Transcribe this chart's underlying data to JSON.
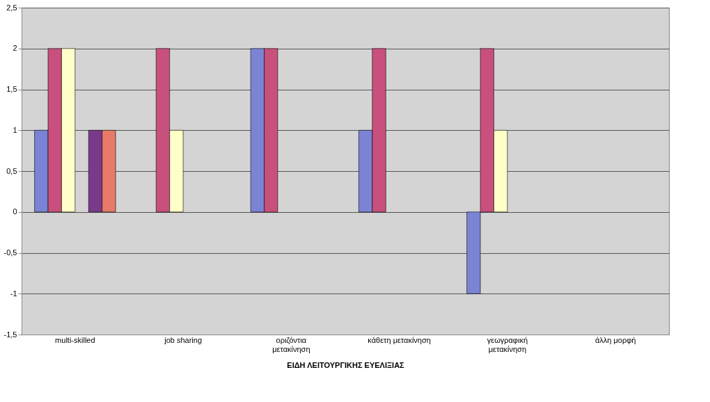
{
  "chart_data": {
    "type": "bar",
    "xlabel": "ΕΙΔΗ ΛΕΙΤΟΥΡΓΙΚΗΣ ΕΥΕΛΙΞΙΑΣ",
    "categories": [
      "multi-skilled",
      "job sharing",
      "οριζόντια\nμετακίνηση",
      "κάθετη μετακίνηση",
      "γεωγραφική\nμετακίνηση",
      "άλλη μορφή"
    ],
    "series": [
      {
        "color": "#7b84d4",
        "values": [
          1,
          0,
          2,
          1,
          -1,
          0
        ]
      },
      {
        "color": "#c8507d",
        "values": [
          2,
          2,
          2,
          2,
          2,
          0
        ]
      },
      {
        "color": "#ffffc8",
        "values": [
          2,
          1,
          0,
          0,
          1,
          0
        ]
      },
      {
        "color": "#ccf5f5",
        "values": [
          0,
          0,
          0,
          0,
          0,
          0
        ]
      },
      {
        "color": "#7a3a8a",
        "values": [
          1,
          0,
          0,
          0,
          0,
          0
        ]
      },
      {
        "color": "#e77a6a",
        "values": [
          1,
          0,
          0,
          0,
          0,
          0
        ]
      }
    ],
    "ylim": [
      -1.5,
      2.5
    ],
    "yticks": [
      {
        "value": -1.5,
        "label": "-1,5"
      },
      -1,
      {
        "value": -0.5,
        "label": "-0,5"
      },
      0,
      {
        "value": 0.5,
        "label": "0,5"
      },
      1,
      {
        "value": 1.5,
        "label": "1,5"
      },
      2,
      {
        "value": 2.5,
        "label": "2,5"
      }
    ],
    "grid": "y",
    "legend": false
  }
}
